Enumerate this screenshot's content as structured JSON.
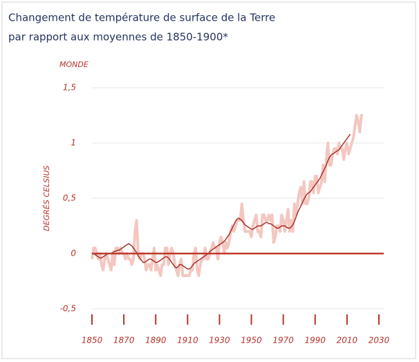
{
  "chart_data": {
    "type": "line",
    "title": [
      "Changement de température de surface de la Terre",
      "par rapport aux moyennes de 1850-1900*"
    ],
    "region_label": "MONDE",
    "y_axis_label": "DEGRÉS CELSIUS",
    "x": [
      1850,
      1851,
      1852,
      1853,
      1854,
      1855,
      1856,
      1857,
      1858,
      1859,
      1860,
      1861,
      1862,
      1863,
      1864,
      1865,
      1866,
      1867,
      1868,
      1869,
      1870,
      1871,
      1872,
      1873,
      1874,
      1875,
      1876,
      1877,
      1878,
      1879,
      1880,
      1881,
      1882,
      1883,
      1884,
      1885,
      1886,
      1887,
      1888,
      1889,
      1890,
      1891,
      1892,
      1893,
      1894,
      1895,
      1896,
      1897,
      1898,
      1899,
      1900,
      1901,
      1902,
      1903,
      1904,
      1905,
      1906,
      1907,
      1908,
      1909,
      1910,
      1911,
      1912,
      1913,
      1914,
      1915,
      1916,
      1917,
      1918,
      1919,
      1920,
      1921,
      1922,
      1923,
      1924,
      1925,
      1926,
      1927,
      1928,
      1929,
      1930,
      1931,
      1932,
      1933,
      1934,
      1935,
      1936,
      1937,
      1938,
      1939,
      1940,
      1941,
      1942,
      1943,
      1944,
      1945,
      1946,
      1947,
      1948,
      1949,
      1950,
      1951,
      1952,
      1953,
      1954,
      1955,
      1956,
      1957,
      1958,
      1959,
      1960,
      1961,
      1962,
      1963,
      1964,
      1965,
      1966,
      1967,
      1968,
      1969,
      1970,
      1971,
      1972,
      1973,
      1974,
      1975,
      1976,
      1977,
      1978,
      1979,
      1980,
      1981,
      1982,
      1983,
      1984,
      1985,
      1986,
      1987,
      1988,
      1989,
      1990,
      1991,
      1992,
      1993,
      1994,
      1995,
      1996,
      1997,
      1998,
      1999,
      2000,
      2001,
      2002,
      2003,
      2004,
      2005,
      2006,
      2007,
      2008,
      2009,
      2010,
      2011,
      2012,
      2013,
      2014,
      2015,
      2016,
      2017,
      2018,
      2019,
      2020
    ],
    "series": [
      {
        "color": "#f3c7c0",
        "width": 4,
        "values": [
          -0.05,
          0.05,
          0.05,
          0.0,
          -0.05,
          0.0,
          -0.1,
          -0.15,
          -0.05,
          0.0,
          -0.05,
          -0.1,
          -0.15,
          0.0,
          -0.1,
          0.05,
          0.05,
          0.0,
          0.05,
          0.0,
          0.0,
          -0.05,
          0.0,
          -0.05,
          -0.05,
          -0.1,
          -0.05,
          0.2,
          0.3,
          0.0,
          -0.05,
          0.0,
          0.0,
          -0.05,
          -0.15,
          -0.1,
          -0.1,
          -0.15,
          -0.05,
          0.05,
          -0.15,
          -0.1,
          -0.15,
          -0.2,
          -0.1,
          -0.1,
          0.05,
          0.05,
          -0.1,
          0.0,
          0.05,
          0.0,
          -0.1,
          -0.15,
          -0.2,
          -0.1,
          -0.05,
          -0.2,
          -0.2,
          -0.2,
          -0.2,
          -0.2,
          -0.15,
          -0.15,
          0.0,
          0.05,
          -0.15,
          -0.2,
          -0.1,
          -0.05,
          -0.05,
          0.05,
          -0.05,
          -0.05,
          0.0,
          0.05,
          0.1,
          0.05,
          0.05,
          -0.05,
          0.1,
          0.15,
          0.1,
          0.0,
          0.1,
          0.05,
          0.1,
          0.2,
          0.25,
          0.2,
          0.25,
          0.3,
          0.3,
          0.3,
          0.45,
          0.3,
          0.2,
          0.2,
          0.2,
          0.2,
          0.15,
          0.25,
          0.3,
          0.35,
          0.2,
          0.2,
          0.15,
          0.35,
          0.35,
          0.3,
          0.3,
          0.35,
          0.3,
          0.35,
          0.1,
          0.15,
          0.25,
          0.25,
          0.2,
          0.35,
          0.3,
          0.2,
          0.3,
          0.4,
          0.2,
          0.3,
          0.2,
          0.45,
          0.35,
          0.45,
          0.55,
          0.6,
          0.45,
          0.65,
          0.45,
          0.45,
          0.5,
          0.65,
          0.65,
          0.55,
          0.7,
          0.7,
          0.55,
          0.6,
          0.65,
          0.8,
          0.65,
          0.85,
          1.0,
          0.8,
          0.8,
          0.9,
          0.95,
          0.95,
          0.9,
          1.0,
          0.95,
          0.95,
          0.85,
          0.95,
          1.0,
          0.9,
          0.95,
          1.0,
          1.05,
          1.15,
          1.25,
          1.2,
          1.1,
          1.25,
          1.25
        ]
      },
      {
        "color": "#a8322a",
        "width": 1.5,
        "values": [
          0,
          0,
          -0.01,
          -0.02,
          -0.03,
          -0.04,
          -0.04,
          -0.03,
          -0.02,
          -0.01,
          0,
          0,
          0,
          0.01,
          0.02,
          0.02,
          0.03,
          0.03,
          0.04,
          0.05,
          0.06,
          0.07,
          0.08,
          0.09,
          0.08,
          0.07,
          0.05,
          0.03,
          0.01,
          -0.02,
          -0.04,
          -0.06,
          -0.08,
          -0.08,
          -0.07,
          -0.06,
          -0.05,
          -0.05,
          -0.06,
          -0.07,
          -0.08,
          -0.08,
          -0.07,
          -0.06,
          -0.05,
          -0.04,
          -0.03,
          -0.03,
          -0.04,
          -0.06,
          -0.08,
          -0.1,
          -0.12,
          -0.13,
          -0.12,
          -0.1,
          -0.1,
          -0.11,
          -0.12,
          -0.13,
          -0.14,
          -0.14,
          -0.13,
          -0.11,
          -0.09,
          -0.08,
          -0.07,
          -0.06,
          -0.05,
          -0.04,
          -0.03,
          -0.02,
          -0.01,
          0,
          0.02,
          0.03,
          0.04,
          0.05,
          0.06,
          0.07,
          0.08,
          0.09,
          0.1,
          0.11,
          0.13,
          0.15,
          0.17,
          0.2,
          0.23,
          0.26,
          0.29,
          0.31,
          0.32,
          0.31,
          0.3,
          0.28,
          0.26,
          0.25,
          0.24,
          0.23,
          0.22,
          0.22,
          0.23,
          0.24,
          0.25,
          0.25,
          0.25,
          0.26,
          0.27,
          0.28,
          0.28,
          0.27,
          0.27,
          0.26,
          0.25,
          0.24,
          0.23,
          0.23,
          0.24,
          0.25,
          0.25,
          0.25,
          0.24,
          0.23,
          0.23,
          0.24,
          0.26,
          0.29,
          0.33,
          0.37,
          0.4,
          0.43,
          0.46,
          0.49,
          0.52,
          0.54,
          0.55,
          0.56,
          0.58,
          0.6,
          0.62,
          0.64,
          0.66,
          0.68,
          0.71,
          0.74,
          0.77,
          0.8,
          0.84,
          0.87,
          0.89,
          0.9,
          0.91,
          0.92,
          0.93,
          0.94,
          0.96,
          0.98,
          1.0,
          1.02,
          1.04,
          1.06,
          1.08,
          null,
          null,
          null,
          null,
          null,
          null,
          null,
          null
        ]
      }
    ],
    "xlim": [
      1850,
      2030
    ],
    "xticks": [
      1850,
      1870,
      1890,
      1910,
      1930,
      1950,
      1970,
      1990,
      2010,
      2030
    ],
    "ylim": [
      -0.5,
      1.5
    ],
    "yticks": [
      {
        "value": 1.5,
        "label": "1,5"
      },
      1,
      {
        "value": 0.5,
        "label": "0,5"
      },
      0,
      {
        "value": -0.5,
        "label": "-0,5"
      }
    ],
    "grid": true,
    "zero_line_color": "#c0392b"
  }
}
